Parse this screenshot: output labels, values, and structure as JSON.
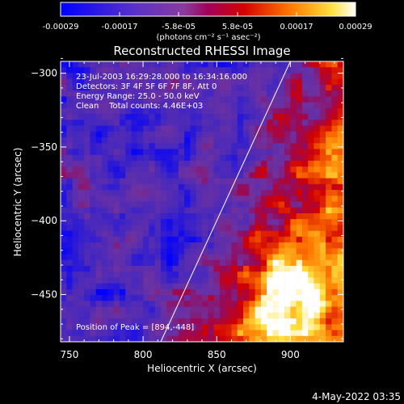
{
  "colorbar": {
    "ticks": [
      "-0.00029",
      "-0.00017",
      "-5.8e-05",
      "5.8e-05",
      "0.00017",
      "0.00029"
    ],
    "units": "(photons cm⁻² s⁻¹ asec⁻²)"
  },
  "chart_data": {
    "type": "heatmap",
    "title": "Reconstructed RHESSI Image",
    "xlabel": "Heliocentric X (arcsec)",
    "ylabel": "Heliocentric Y (arcsec)",
    "xlim": [
      744,
      936
    ],
    "ylim": [
      -482,
      -292
    ],
    "x_ticks": [
      750,
      800,
      850,
      900
    ],
    "y_ticks": [
      -300,
      -350,
      -400,
      -450
    ],
    "colorbar_range": [
      -0.00029,
      0.00029
    ],
    "limb_line": [
      [
        812,
        -482
      ],
      [
        900,
        -292
      ]
    ],
    "peak": [
      894,
      -448
    ],
    "annotations": [
      "23-Jul-2003 16:29:28.000 to 16:34:16.000",
      "Detectors: 3F 4F 5F 6F 7F 8F, Att 0",
      "Energy Range: 25.0 - 50.0 keV",
      "Clean    Total counts: 4.46E+03",
      "Position of Peak = [894,-448]"
    ]
  },
  "timestamp": "4-May-2022 03:35"
}
